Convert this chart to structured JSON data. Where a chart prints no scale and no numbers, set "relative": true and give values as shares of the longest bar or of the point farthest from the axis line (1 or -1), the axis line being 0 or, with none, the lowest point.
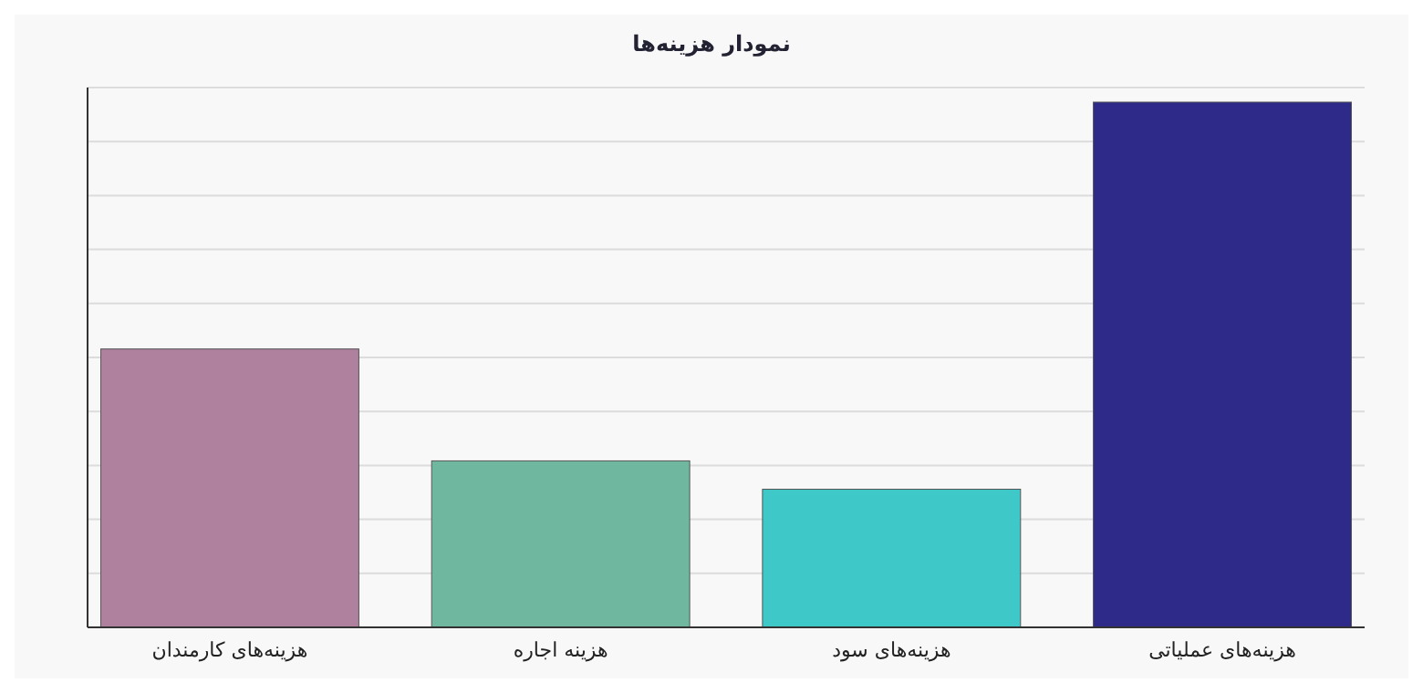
{
  "chart_data": {
    "type": "bar",
    "title": "نمودار هزینه‌ها",
    "relative": true,
    "grid": true,
    "categories": [
      "هزینه‌های کارمندان",
      "هزینه اجاره",
      "هزینه‌های سود",
      "هزینه‌های عملیاتی"
    ],
    "values": [
      0.53,
      0.317,
      0.263,
      1
    ],
    "colors": [
      "#b0809f",
      "#6fb89f",
      "#3ec8c8",
      "#2e2a8a"
    ]
  }
}
